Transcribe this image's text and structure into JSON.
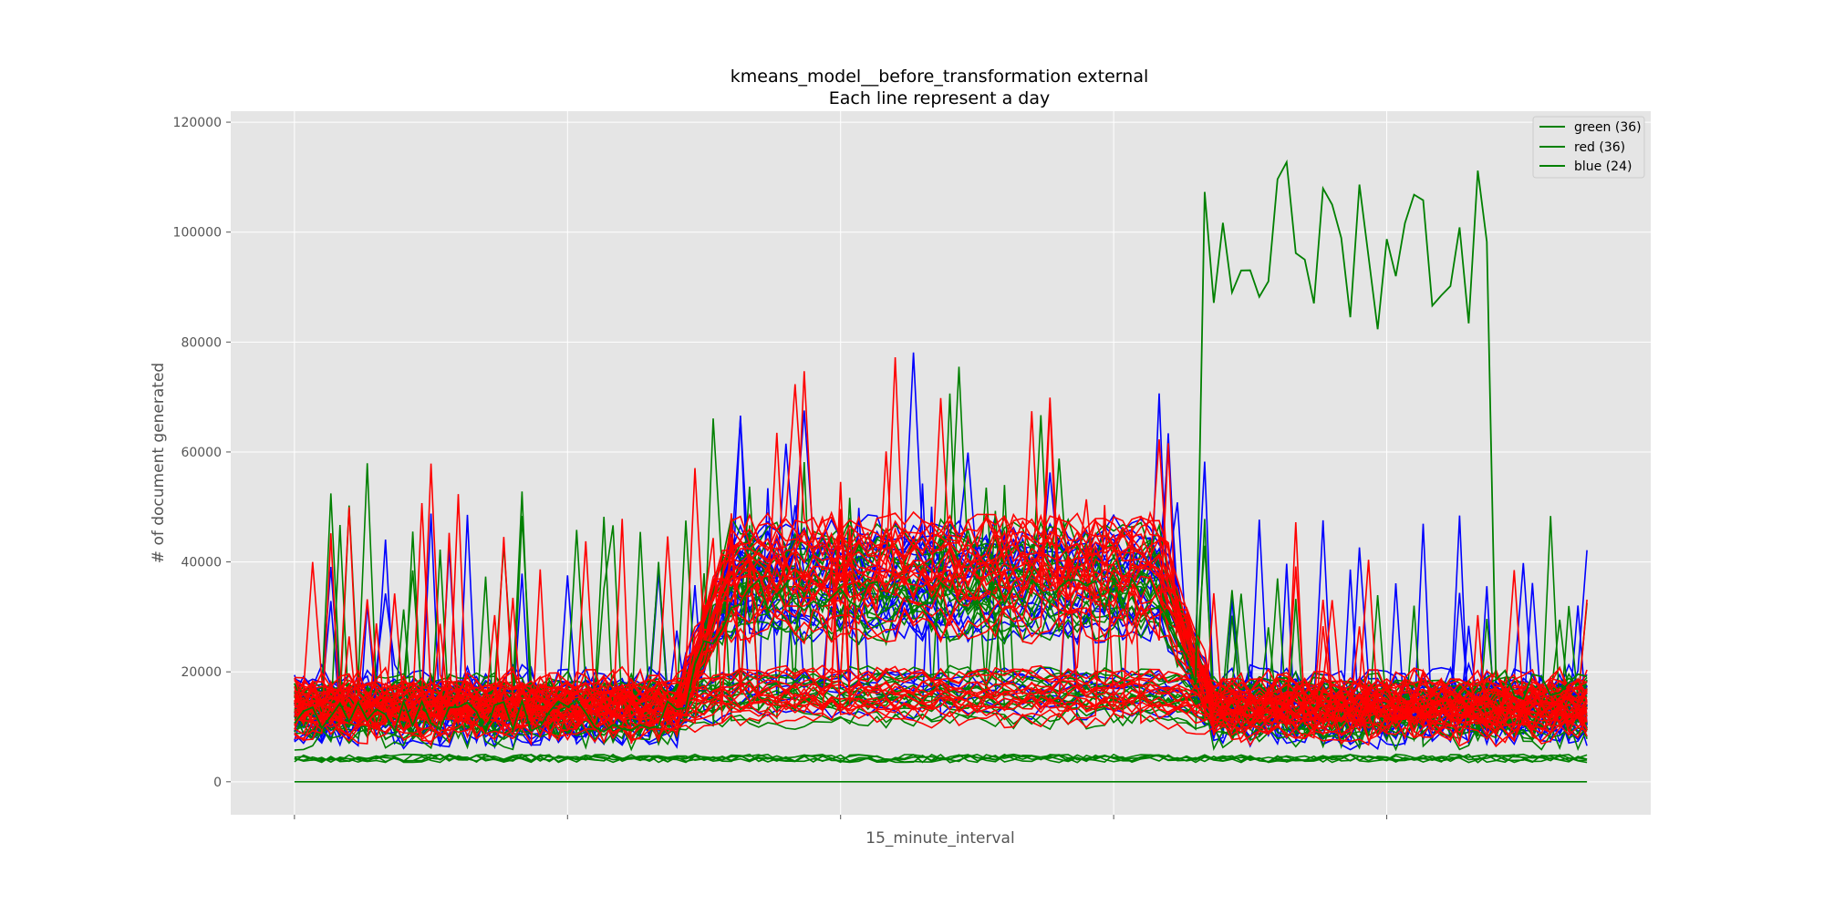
{
  "chart_data": {
    "type": "line",
    "title": "kmeans_model__before_transformation external",
    "subtitle": "Each line represent a day",
    "xlabel": "15_minute_interval",
    "ylabel": "# of document generated",
    "ylim": [
      -6000,
      122000
    ],
    "yticks": [
      0,
      20000,
      40000,
      60000,
      80000,
      100000,
      120000
    ],
    "xlim": [
      -7,
      149
    ],
    "x_tick_positions": [
      0,
      30,
      60,
      90,
      120
    ],
    "grid": true,
    "legend_position": "top-right",
    "legend": [
      {
        "label": "green (36)",
        "color": "#008000"
      },
      {
        "label": "red (36)",
        "color": "#008000"
      },
      {
        "label": "blue (24)",
        "color": "#008000"
      }
    ],
    "clusters": [
      {
        "name": "blue",
        "color": "#0000ff",
        "count": 24
      },
      {
        "name": "red",
        "color": "#ff0000",
        "count": 36
      },
      {
        "name": "green",
        "color": "#008000",
        "count": 36
      }
    ],
    "profiles": {
      "day_profile_x": [
        0,
        42,
        48,
        90,
        96,
        100,
        142
      ],
      "note_none": ""
    }
  }
}
